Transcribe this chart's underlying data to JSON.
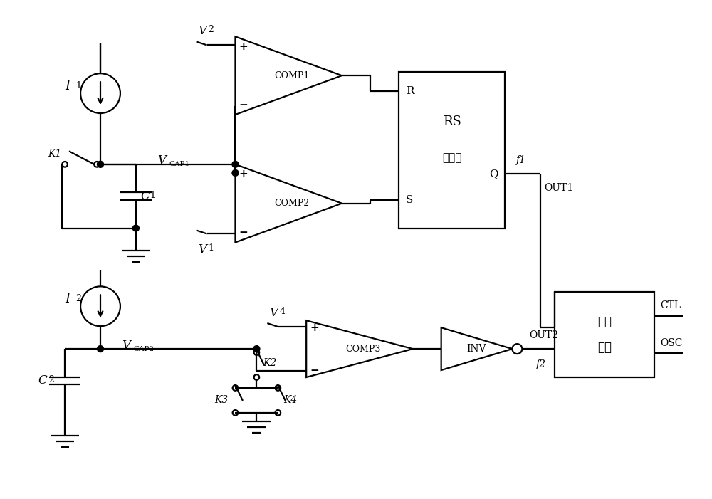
{
  "bg_color": "#ffffff",
  "lc": "#000000",
  "lw": 1.6,
  "fig_w": 10.0,
  "fig_h": 7.01,
  "dpi": 100,
  "xlim": [
    0,
    100
  ],
  "ylim": [
    0,
    70
  ]
}
